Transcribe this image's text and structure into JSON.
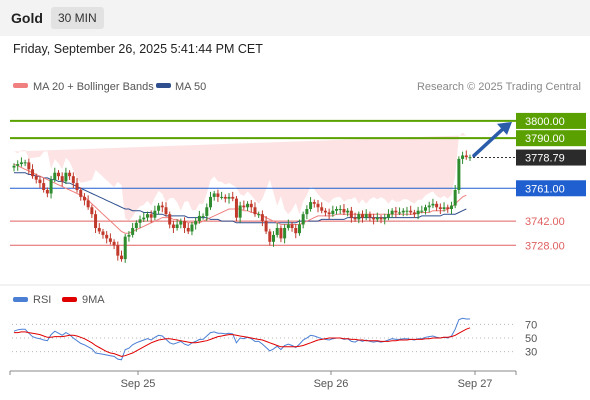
{
  "header": {
    "instrument": "Gold",
    "timeframe": "30 MIN"
  },
  "datetime": "Friday, September 26, 2025 5:41:44 PM CET",
  "legend": {
    "ma20": {
      "label": "MA 20 + Bollinger Bands",
      "color": "#f08080"
    },
    "ma50": {
      "label": "MA 50",
      "color": "#2f4f8f"
    },
    "credit": "Research © 2025 Trading Central"
  },
  "rsi_legend": {
    "rsi": {
      "label": "RSI",
      "color": "#4a7fd4"
    },
    "ma9": {
      "label": "9MA",
      "color": "#e00000"
    }
  },
  "colors": {
    "up": "#2e8b2e",
    "down": "#c0392b",
    "resistance": "#5aa000",
    "pivot": "#1f5fd0",
    "support": "#e06060",
    "arrow": "#2a5caa"
  },
  "chart_data": [
    {
      "type": "candlestick",
      "x_labels": [
        "Sep 25",
        "Sep 26",
        "Sep 27"
      ],
      "ylim": [
        3705,
        3815
      ],
      "last_price": "3778.79",
      "levels": [
        {
          "label": "3800.00",
          "value": 3800,
          "kind": "resistance"
        },
        {
          "label": "3790.00",
          "value": 3790,
          "kind": "resistance"
        },
        {
          "label": "3761.00",
          "value": 3761,
          "kind": "pivot"
        },
        {
          "label": "3742.00",
          "value": 3742,
          "kind": "support"
        },
        {
          "label": "3728.00",
          "value": 3728,
          "kind": "support"
        }
      ],
      "target": {
        "from": 3778.79,
        "to": 3800
      },
      "close": [
        3774,
        3775,
        3776,
        3776,
        3772,
        3768,
        3766,
        3764,
        3760,
        3758,
        3766,
        3770,
        3768,
        3765,
        3770,
        3768,
        3764,
        3760,
        3756,
        3754,
        3750,
        3746,
        3738,
        3736,
        3734,
        3732,
        3730,
        3728,
        3722,
        3720,
        3733,
        3734,
        3738,
        3741,
        3743,
        3744,
        3746,
        3744,
        3748,
        3751,
        3750,
        3746,
        3740,
        3738,
        3740,
        3742,
        3738,
        3736,
        3740,
        3742,
        3745,
        3745,
        3750,
        3756,
        3758,
        3756,
        3756,
        3755,
        3756,
        3755,
        3744,
        3751,
        3750,
        3752,
        3750,
        3746,
        3746,
        3742,
        3736,
        3730,
        3734,
        3738,
        3732,
        3738,
        3740,
        3738,
        3735,
        3740,
        3746,
        3749,
        3753,
        3752,
        3750,
        3748,
        3747,
        3746,
        3748,
        3749,
        3749,
        3747,
        3748,
        3744,
        3743,
        3746,
        3744,
        3746,
        3744,
        3743,
        3744,
        3743,
        3744,
        3746,
        3748,
        3747,
        3747,
        3748,
        3748,
        3747,
        3746,
        3748,
        3748,
        3750,
        3751,
        3752,
        3750,
        3749,
        3750,
        3749,
        3751,
        3760,
        3778,
        3780,
        3779,
        3779
      ],
      "ma20": [
        3775,
        3774,
        3773,
        3772,
        3771,
        3770,
        3769,
        3768,
        3767,
        3766,
        3765,
        3764,
        3763,
        3762,
        3761,
        3760,
        3759,
        3758,
        3757,
        3756,
        3754,
        3752,
        3750,
        3748,
        3746,
        3744,
        3742,
        3740,
        3738,
        3736,
        3735,
        3735,
        3736,
        3737,
        3738,
        3739,
        3740,
        3741,
        3742,
        3743,
        3744,
        3744,
        3744,
        3743,
        3743,
        3742,
        3742,
        3741,
        3741,
        3741,
        3741,
        3742,
        3743,
        3744,
        3745,
        3746,
        3747,
        3748,
        3749,
        3749,
        3749,
        3749,
        3748,
        3748,
        3747,
        3747,
        3746,
        3745,
        3744,
        3743,
        3742,
        3741,
        3740,
        3740,
        3740,
        3740,
        3740,
        3740,
        3741,
        3742,
        3743,
        3744,
        3745,
        3745,
        3745,
        3745,
        3745,
        3746,
        3746,
        3746,
        3746,
        3746,
        3746,
        3746,
        3746,
        3746,
        3746,
        3746,
        3746,
        3746,
        3746,
        3746,
        3746,
        3746,
        3746,
        3746,
        3746,
        3746,
        3746,
        3747,
        3747,
        3747,
        3747,
        3748,
        3748,
        3748,
        3748,
        3749,
        3750,
        3752,
        3754,
        3756,
        3757
      ],
      "ma50": [
        3770,
        3770,
        3770,
        3770,
        3769,
        3769,
        3768,
        3768,
        3767,
        3767,
        3766,
        3766,
        3765,
        3765,
        3764,
        3764,
        3763,
        3762,
        3761,
        3760,
        3759,
        3758,
        3757,
        3756,
        3755,
        3754,
        3753,
        3752,
        3751,
        3750,
        3749,
        3749,
        3748,
        3748,
        3748,
        3747,
        3747,
        3747,
        3746,
        3746,
        3746,
        3745,
        3745,
        3745,
        3745,
        3745,
        3745,
        3744,
        3744,
        3744,
        3744,
        3744,
        3744,
        3743,
        3743,
        3743,
        3742,
        3742,
        3742,
        3742,
        3741,
        3741,
        3741,
        3741,
        3741,
        3741,
        3741,
        3741,
        3741,
        3741,
        3741,
        3741,
        3741,
        3741,
        3741,
        3741,
        3741,
        3742,
        3742,
        3742,
        3742,
        3742,
        3742,
        3743,
        3743,
        3743,
        3743,
        3743,
        3743,
        3743,
        3744,
        3744,
        3744,
        3744,
        3744,
        3744,
        3744,
        3744,
        3744,
        3744,
        3744,
        3744,
        3744,
        3744,
        3744,
        3744,
        3744,
        3744,
        3744,
        3744,
        3745,
        3745,
        3745,
        3745,
        3745,
        3745,
        3746,
        3746,
        3746,
        3746,
        3747,
        3748,
        3749
      ]
    },
    {
      "type": "line",
      "name": "RSI",
      "ylim": [
        0,
        100
      ],
      "ticks": [
        70,
        50,
        30
      ],
      "rsi": [
        60,
        62,
        63,
        63,
        57,
        52,
        50,
        49,
        47,
        46,
        55,
        60,
        57,
        54,
        58,
        55,
        50,
        46,
        42,
        40,
        37,
        34,
        28,
        27,
        26,
        25,
        24,
        23,
        19,
        18,
        33,
        35,
        40,
        43,
        45,
        47,
        49,
        47,
        51,
        54,
        53,
        48,
        43,
        41,
        43,
        45,
        41,
        39,
        43,
        45,
        48,
        48,
        53,
        58,
        59,
        57,
        57,
        56,
        57,
        56,
        43,
        50,
        49,
        51,
        49,
        45,
        45,
        41,
        36,
        31,
        34,
        38,
        33,
        39,
        41,
        39,
        36,
        41,
        47,
        50,
        54,
        53,
        51,
        49,
        48,
        47,
        49,
        50,
        50,
        48,
        49,
        45,
        44,
        47,
        45,
        47,
        45,
        44,
        45,
        44,
        45,
        47,
        49,
        48,
        48,
        49,
        49,
        48,
        47,
        49,
        49,
        51,
        52,
        53,
        51,
        50,
        51,
        50,
        53,
        63,
        77,
        79,
        78,
        78
      ],
      "ma9": [
        58,
        58,
        59,
        59,
        58,
        57,
        56,
        55,
        53,
        51,
        51,
        52,
        52,
        52,
        53,
        54,
        54,
        53,
        51,
        49,
        46,
        43,
        39,
        36,
        33,
        30,
        28,
        27,
        25,
        23,
        24,
        26,
        28,
        31,
        34,
        37,
        40,
        43,
        45,
        47,
        48,
        49,
        49,
        48,
        47,
        46,
        45,
        44,
        43,
        43,
        44,
        45,
        46,
        48,
        50,
        52,
        53,
        54,
        55,
        55,
        54,
        53,
        52,
        51,
        50,
        49,
        48,
        47,
        45,
        43,
        41,
        39,
        37,
        37,
        37,
        37,
        37,
        38,
        39,
        41,
        43,
        45,
        47,
        48,
        49,
        50,
        50,
        50,
        50,
        49,
        49,
        48,
        48,
        47,
        47,
        46,
        46,
        46,
        46,
        45,
        45,
        45,
        46,
        46,
        47,
        47,
        47,
        48,
        48,
        48,
        48,
        49,
        49,
        50,
        50,
        50,
        51,
        51,
        52,
        54,
        57,
        60,
        63,
        65
      ]
    }
  ]
}
